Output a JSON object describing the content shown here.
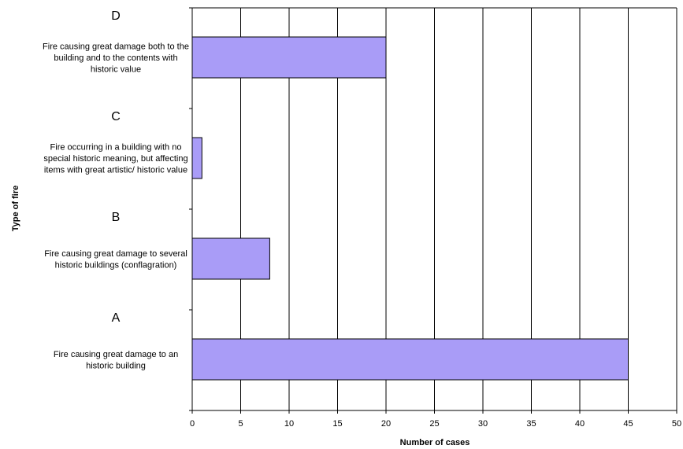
{
  "chart_data": {
    "type": "bar",
    "orientation": "horizontal",
    "categories": [
      {
        "letter": "D",
        "description": [
          "Fire causing great damage both to the",
          "building and to the contents with",
          "historic value"
        ]
      },
      {
        "letter": "C",
        "description": [
          "Fire occurring in a building with no",
          "special historic meaning, but affecting",
          "items with great artistic/ historic value"
        ]
      },
      {
        "letter": "B",
        "description": [
          "Fire causing great damage to several",
          "historic buildings (conflagration)"
        ]
      },
      {
        "letter": "A",
        "description": [
          "Fire causing great damage to an",
          "historic building"
        ]
      }
    ],
    "values": [
      20,
      1,
      8,
      45
    ],
    "xlabel": "Number of cases",
    "ylabel": "Type of fire",
    "xlim": [
      0,
      50
    ],
    "xticks": [
      0,
      5,
      10,
      15,
      20,
      25,
      30,
      35,
      40,
      45,
      50
    ],
    "grid": "vertical",
    "bar_color": "#a99cf7",
    "bar_edge_color": "#000000"
  }
}
